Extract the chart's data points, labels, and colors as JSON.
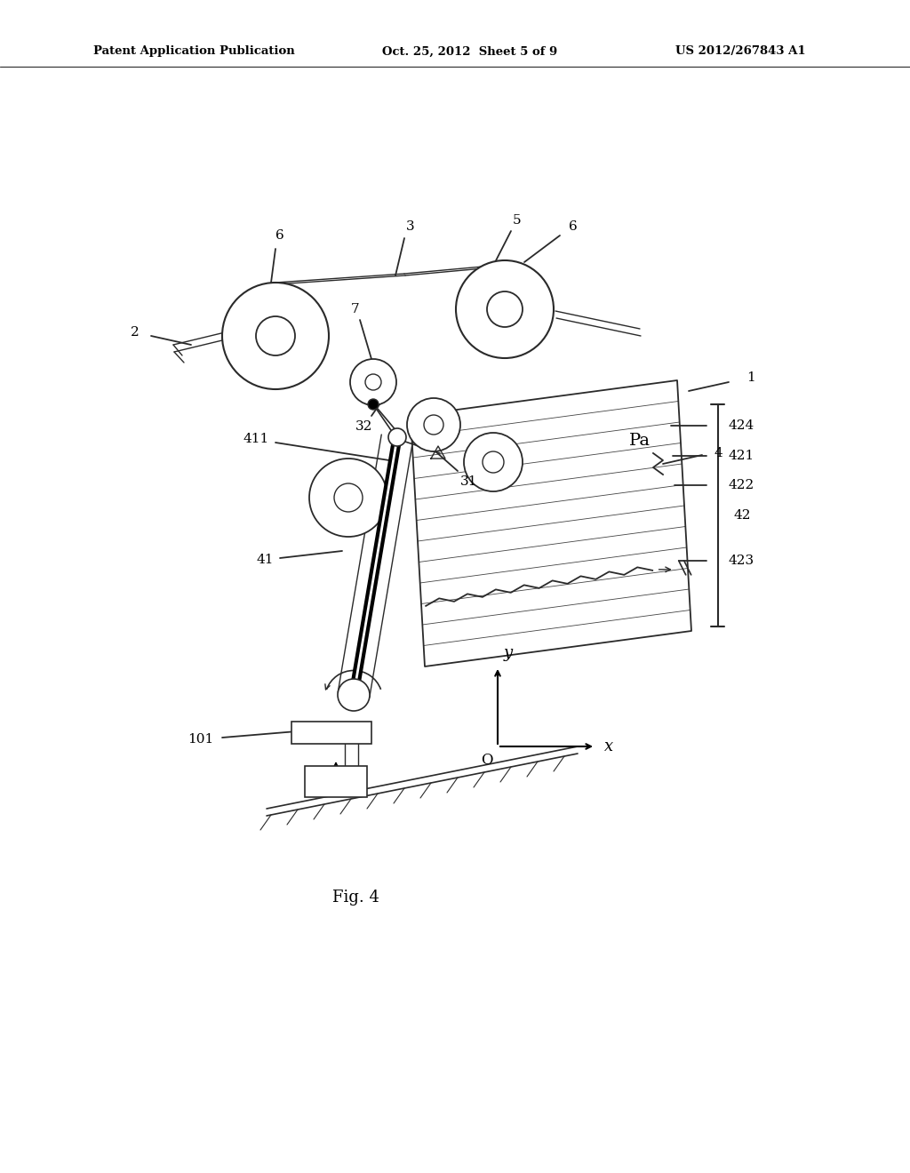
{
  "header_left": "Patent Application Publication",
  "header_mid": "Oct. 25, 2012  Sheet 5 of 9",
  "header_right": "US 2012/267843 A1",
  "fig_caption": "Fig. 4",
  "background_color": "#ffffff"
}
